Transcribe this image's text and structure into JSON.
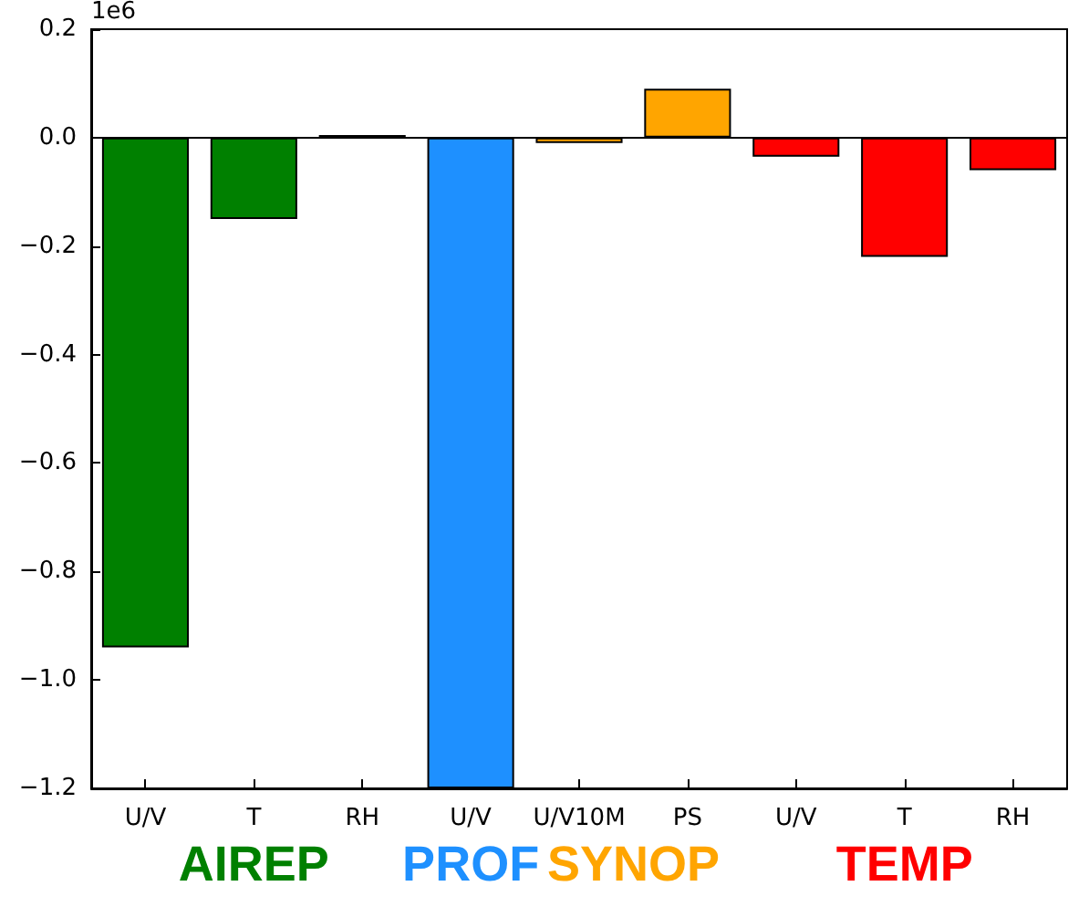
{
  "chart_data": {
    "type": "bar",
    "categories": [
      "U/V",
      "T",
      "RH",
      "U/V",
      "U/V10M",
      "PS",
      "U/V",
      "T",
      "RH"
    ],
    "series": [
      {
        "name": "AIREP",
        "color": "#008000",
        "values": [
          -0.94,
          -0.15,
          0.005,
          null,
          null,
          null,
          null,
          null,
          null
        ]
      },
      {
        "name": "PROF",
        "color": "#1e90ff",
        "values": [
          null,
          null,
          null,
          -1.2,
          null,
          null,
          null,
          null,
          null
        ]
      },
      {
        "name": "SYNOP",
        "color": "#ffa500",
        "values": [
          null,
          null,
          null,
          null,
          -0.01,
          0.09,
          null,
          null,
          null
        ]
      },
      {
        "name": "TEMP",
        "color": "#ff0000",
        "values": [
          null,
          null,
          null,
          null,
          null,
          null,
          -0.035,
          -0.22,
          -0.06
        ]
      }
    ],
    "ylim": [
      -1.2,
      0.2
    ],
    "yticks": [
      {
        "value": -1.2,
        "label": "−1.2"
      },
      {
        "value": -1.0,
        "label": "−1.0"
      },
      {
        "value": -0.8,
        "label": "−0.8"
      },
      {
        "value": -0.6,
        "label": "−0.6"
      },
      {
        "value": -0.4,
        "label": "−0.4"
      },
      {
        "value": -0.2,
        "label": "−0.2"
      },
      {
        "value": 0,
        "label": "0.0"
      },
      {
        "value": 0.2,
        "label": "0.2"
      }
    ],
    "ref_lines": [
      {
        "axis": "y",
        "value": 0,
        "color": "#000000"
      }
    ],
    "annotations": [
      "1e6"
    ],
    "grid": false,
    "legend": "bottom"
  }
}
